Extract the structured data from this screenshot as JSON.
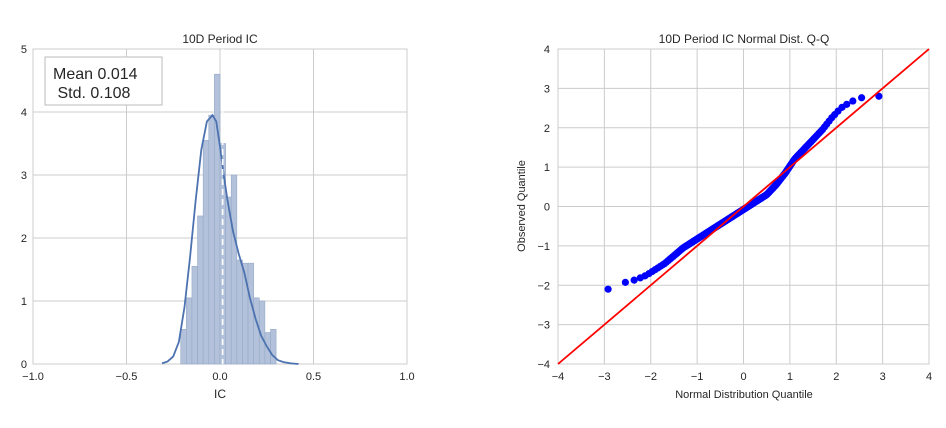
{
  "colors": {
    "hist_fill": "#b3c2da",
    "hist_edge": "#94a9c8",
    "kde_line": "#4c72b0",
    "mean_line": "#ffffff",
    "grid": "#cccccc",
    "spine": "#cccccc",
    "qq_points": "#0000ff",
    "qq_line": "#ff0000",
    "text": "#262626",
    "annotation_border": "#bbbbbb"
  },
  "chart_data": [
    {
      "type": "bar",
      "title": "10D Period IC",
      "xlabel": "IC",
      "ylabel": "",
      "xlim": [
        -1.0,
        1.0
      ],
      "ylim": [
        0,
        5
      ],
      "xticks": [
        -1.0,
        -0.5,
        0.0,
        0.5,
        1.0
      ],
      "xtick_labels": [
        "−1.0",
        "−0.5",
        "0.0",
        "0.5",
        "1.0"
      ],
      "yticks": [
        0,
        1,
        2,
        3,
        4,
        5
      ],
      "ytick_labels": [
        "0",
        "1",
        "2",
        "3",
        "4",
        "5"
      ],
      "grid": true,
      "annotation": {
        "line1": "Mean 0.014",
        "line2": " Std. 0.108"
      },
      "mean_value": 0.014,
      "bins": [
        {
          "x0": -0.21,
          "x1": -0.18,
          "h": 0.55
        },
        {
          "x0": -0.18,
          "x1": -0.15,
          "h": 1.05
        },
        {
          "x0": -0.15,
          "x1": -0.12,
          "h": 1.55
        },
        {
          "x0": -0.12,
          "x1": -0.09,
          "h": 2.35
        },
        {
          "x0": -0.09,
          "x1": -0.06,
          "h": 3.55
        },
        {
          "x0": -0.06,
          "x1": -0.03,
          "h": 3.95
        },
        {
          "x0": -0.03,
          "x1": 0.0,
          "h": 4.6
        },
        {
          "x0": 0.0,
          "x1": 0.03,
          "h": 3.5
        },
        {
          "x0": 0.03,
          "x1": 0.06,
          "h": 2.65
        },
        {
          "x0": 0.06,
          "x1": 0.09,
          "h": 3.0
        },
        {
          "x0": 0.09,
          "x1": 0.12,
          "h": 1.65
        },
        {
          "x0": 0.12,
          "x1": 0.15,
          "h": 1.6
        },
        {
          "x0": 0.15,
          "x1": 0.18,
          "h": 1.6
        },
        {
          "x0": 0.18,
          "x1": 0.21,
          "h": 1.05
        },
        {
          "x0": 0.21,
          "x1": 0.24,
          "h": 1.0
        },
        {
          "x0": 0.24,
          "x1": 0.27,
          "h": 0.5
        },
        {
          "x0": 0.27,
          "x1": 0.3,
          "h": 0.55
        }
      ],
      "kde": {
        "x": [
          -0.31,
          -0.28,
          -0.25,
          -0.22,
          -0.19,
          -0.16,
          -0.13,
          -0.1,
          -0.07,
          -0.04,
          -0.02,
          0.0,
          0.02,
          0.04,
          0.07,
          0.1,
          0.13,
          0.16,
          0.19,
          0.22,
          0.25,
          0.28,
          0.31,
          0.34,
          0.38,
          0.42
        ],
        "y": [
          0.01,
          0.04,
          0.12,
          0.35,
          0.9,
          1.7,
          2.6,
          3.4,
          3.85,
          3.95,
          3.85,
          3.45,
          3.0,
          2.6,
          2.1,
          1.75,
          1.45,
          1.05,
          0.72,
          0.45,
          0.28,
          0.14,
          0.06,
          0.03,
          0.01,
          0.0
        ]
      }
    },
    {
      "type": "scatter",
      "title": "10D Period IC Normal Dist. Q-Q",
      "xlabel": "Normal Distribution Quantile",
      "ylabel": "Observed Quantile",
      "xlim": [
        -4,
        4
      ],
      "ylim": [
        -4,
        4
      ],
      "xticks": [
        -4,
        -3,
        -2,
        -1,
        0,
        1,
        2,
        3,
        4
      ],
      "xtick_labels": [
        "−4",
        "−3",
        "−2",
        "−1",
        "0",
        "1",
        "2",
        "3",
        "4"
      ],
      "yticks": [
        -4,
        -3,
        -2,
        -1,
        0,
        1,
        2,
        3,
        4
      ],
      "ytick_labels": [
        "−4",
        "−3",
        "−2",
        "−1",
        "0",
        "1",
        "2",
        "3",
        "4"
      ],
      "grid": true,
      "reference_line": {
        "slope": 1.0,
        "intercept": 0.0
      },
      "qq_curve": {
        "x": [
          -2.92,
          -2.7,
          -2.5,
          -2.3,
          -2.1,
          -1.9,
          -1.7,
          -1.5,
          -1.3,
          -1.1,
          -0.9,
          -0.7,
          -0.5,
          -0.3,
          -0.1,
          0.1,
          0.3,
          0.5,
          0.7,
          0.9,
          1.1,
          1.3,
          1.5,
          1.7,
          1.9,
          2.1,
          2.3,
          2.5,
          2.7,
          2.92
        ],
        "y": [
          -2.1,
          -1.95,
          -1.92,
          -1.85,
          -1.75,
          -1.6,
          -1.45,
          -1.25,
          -1.05,
          -0.9,
          -0.75,
          -0.6,
          -0.45,
          -0.3,
          -0.15,
          0.0,
          0.15,
          0.3,
          0.55,
          0.85,
          1.2,
          1.45,
          1.7,
          1.95,
          2.25,
          2.5,
          2.65,
          2.75,
          2.8,
          2.8
        ]
      },
      "n_points": 245
    }
  ]
}
